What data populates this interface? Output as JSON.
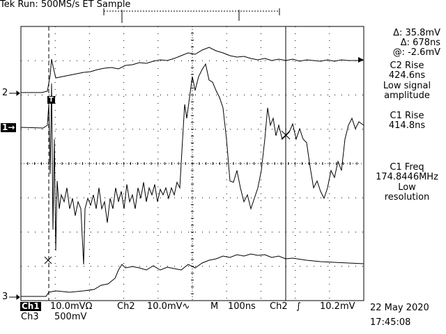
{
  "header": {
    "status": "Tek Run: 500MS/s ET Sample"
  },
  "markers": {
    "ch2": "2",
    "ch1": "1",
    "ch3": "3",
    "trigger_t": "T"
  },
  "cursor_readout": {
    "delta_v": "Δ: 35.8mV",
    "delta_t": "Δ: 678ns",
    "at_v": "@: -2.6mV"
  },
  "measurements": [
    {
      "name": "C2 Rise",
      "value": "424.6ns",
      "note": [
        "Low signal",
        "amplitude"
      ]
    },
    {
      "name": "C1 Rise",
      "value": "414.8ns",
      "note": []
    },
    {
      "name": "C1 Freq",
      "value": "174.8446MHz",
      "note": [
        "Low",
        "resolution"
      ]
    }
  ],
  "footer": {
    "ch1_label": "Ch1",
    "ch1_scale": "10.0mV",
    "ch1_coupling": "Ω",
    "ch2_label": "Ch2",
    "ch2_scale": "10.0mV",
    "ch2_coupling": "∿",
    "timebase_label": "M",
    "timebase": "100ns",
    "trig_source": "Ch2",
    "trig_slope": "∫",
    "trig_level": "10.2mV",
    "ch3_label": "Ch3",
    "ch3_scale": "500mV",
    "date": "22 May 2020",
    "time": "17:45:08"
  },
  "colors": {
    "trace": "#000000",
    "background": "#ffffff",
    "graticule": "#000000"
  }
}
